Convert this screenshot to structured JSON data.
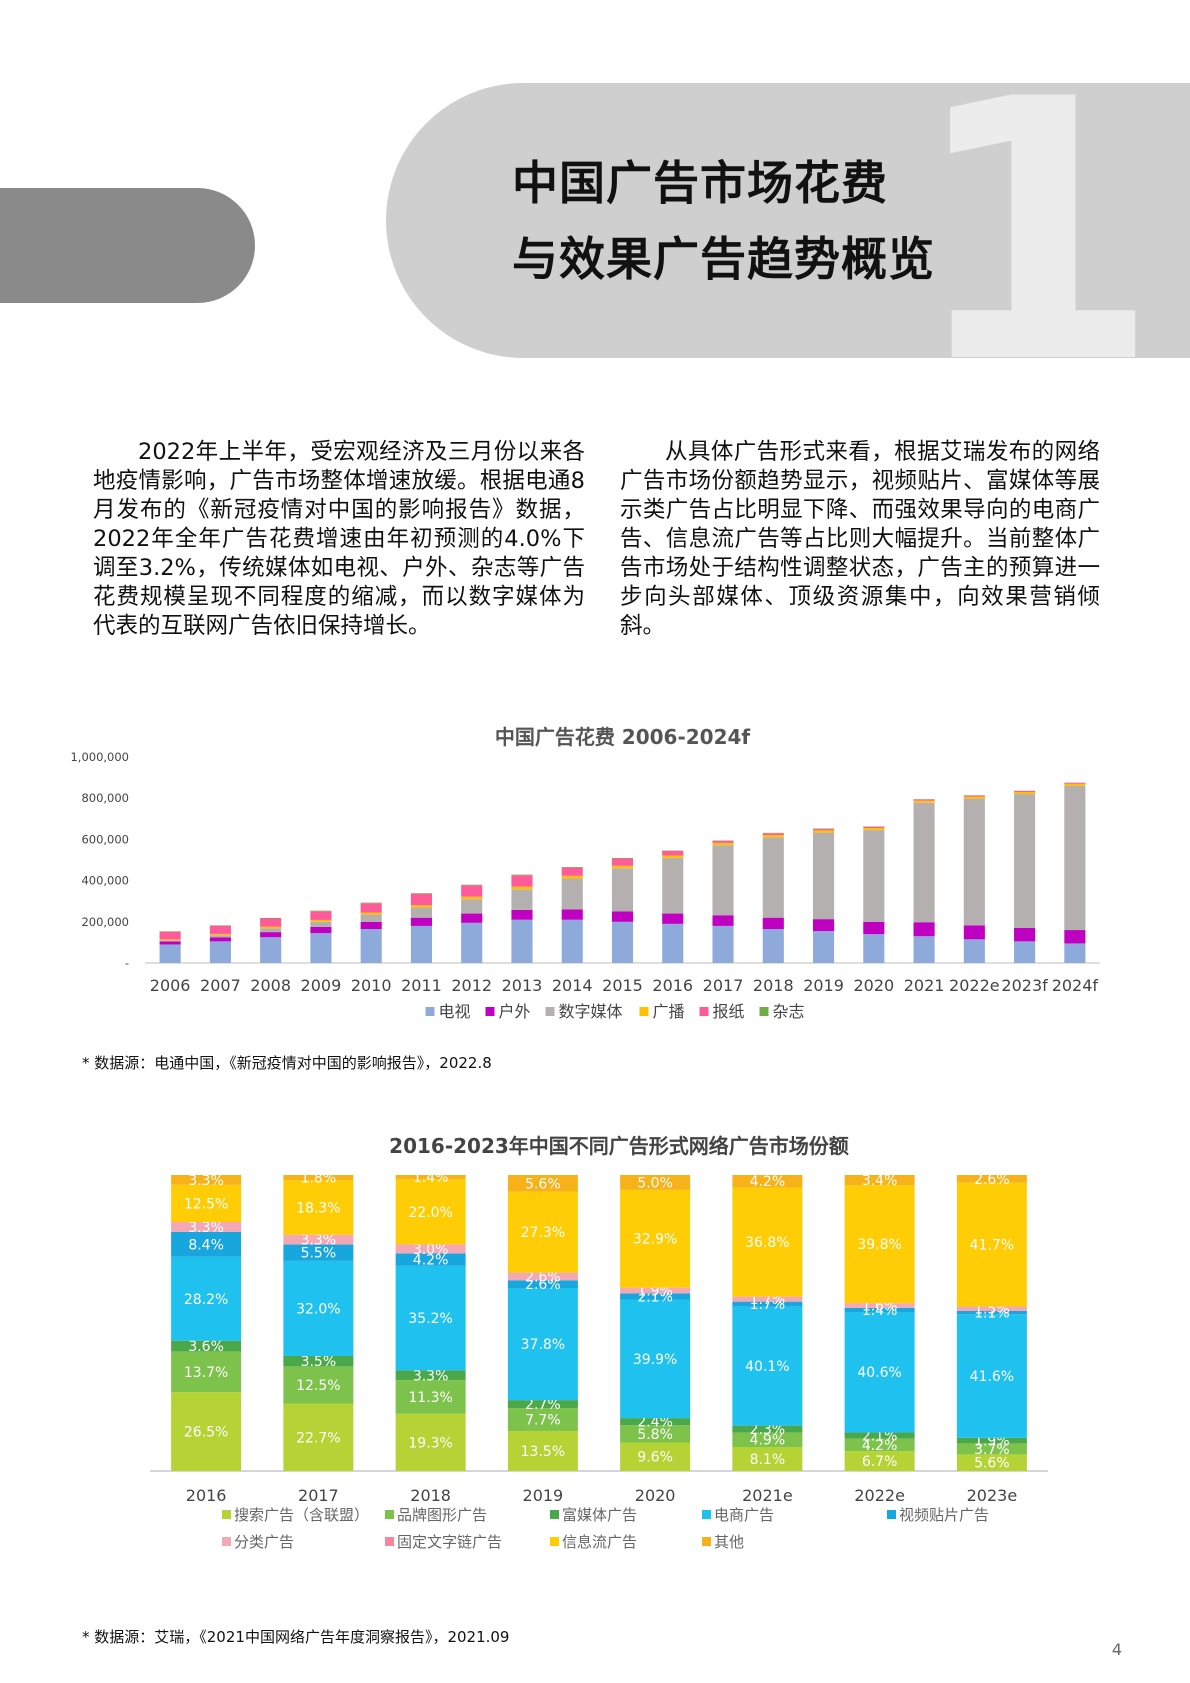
{
  "header": {
    "title_line1": "中国广告市场花费",
    "title_line2": "与效果广告趋势概览",
    "section_number": "1"
  },
  "paragraphs": {
    "p1": "2022年上半年，受宏观经济及三月份以来各地疫情影响，广告市场整体增速放缓。根据电通8月发布的《新冠疫情对中国的影响报告》数据，2022年全年广告花费增速由年初预测的4.0%下调至3.2%，传统媒体如电视、户外、杂志等广告花费规模呈现不同程度的缩减，而以数字媒体为代表的互联网广告依旧保持增长。",
    "p2": "从具体广告形式来看，根据艾瑞发布的网络广告市场份额趋势显示，视频贴片、富媒体等展示类广告占比明显下降、而强效果导向的电商广告、信息流广告等占比则大幅提升。当前整体广告市场处于结构性调整状态，广告主的预算进一步向头部媒体、顶级资源集中，向效果营销倾斜。"
  },
  "sources": {
    "chart1": "* 数据源：电通中国，《新冠疫情对中国的影响报告》，2022.8",
    "chart2": "* 数据源：艾瑞，《2021中国网络广告年度洞察报告》，2021.09"
  },
  "page_number": "4",
  "chart_data": [
    {
      "type": "bar",
      "stacked": true,
      "title": "中国广告花费 2006-2024f",
      "categories": [
        "2006",
        "2007",
        "2008",
        "2009",
        "2010",
        "2011",
        "2012",
        "2013",
        "2014",
        "2015",
        "2016",
        "2017",
        "2018",
        "2019",
        "2020",
        "2021",
        "2022e",
        "2023f",
        "2024f"
      ],
      "ylim": [
        0,
        1000000
      ],
      "yticks": [
        "-",
        "200,000",
        "400,000",
        "600,000",
        "800,000",
        "1,000,000"
      ],
      "legend_position": "bottom",
      "series": [
        {
          "name": "电视",
          "color": "#8eaadb",
          "values": [
            90000,
            105000,
            125000,
            145000,
            165000,
            180000,
            195000,
            210000,
            210000,
            200000,
            190000,
            180000,
            165000,
            155000,
            140000,
            130000,
            115000,
            105000,
            95000
          ]
        },
        {
          "name": "户外",
          "color": "#c000c0",
          "values": [
            15000,
            20000,
            25000,
            30000,
            35000,
            40000,
            45000,
            48000,
            50000,
            50000,
            50000,
            52000,
            55000,
            58000,
            60000,
            68000,
            68000,
            65000,
            65000
          ]
        },
        {
          "name": "数字媒体",
          "color": "#b4b0b0",
          "values": [
            5000,
            10000,
            18000,
            25000,
            35000,
            50000,
            70000,
            100000,
            150000,
            210000,
            270000,
            340000,
            390000,
            420000,
            445000,
            580000,
            615000,
            650000,
            700000
          ]
        },
        {
          "name": "广播",
          "color": "#ffc000",
          "values": [
            5000,
            6000,
            8000,
            9000,
            10000,
            11000,
            12000,
            13000,
            13000,
            12000,
            12000,
            11000,
            11000,
            11000,
            10000,
            10000,
            10000,
            10000,
            10000
          ]
        },
        {
          "name": "报纸",
          "color": "#ff5b9a",
          "values": [
            37000,
            40000,
            40000,
            42000,
            45000,
            55000,
            55000,
            55000,
            40000,
            35000,
            22000,
            10000,
            9000,
            7000,
            6000,
            6000,
            5000,
            5000,
            5000
          ]
        },
        {
          "name": "杂志",
          "color": "#70ad47",
          "values": [
            2000,
            2000,
            3000,
            3000,
            3000,
            3000,
            3000,
            3000,
            3000,
            3000,
            2000,
            2000,
            2000,
            2000,
            2000,
            1000,
            1000,
            1000,
            1000
          ]
        }
      ]
    },
    {
      "type": "bar",
      "stacked": true,
      "percent": true,
      "title": "2016-2023年中国不同广告形式网络广告市场份额",
      "categories": [
        "2016",
        "2017",
        "2018",
        "2019",
        "2020",
        "2021e",
        "2022e",
        "2023e"
      ],
      "legend_position": "bottom",
      "series": [
        {
          "name": "搜索广告（含联盟）",
          "color": "#b5d334",
          "values": [
            26.5,
            22.7,
            19.3,
            13.5,
            9.6,
            8.1,
            6.7,
            5.6
          ]
        },
        {
          "name": "品牌图形广告",
          "color": "#7cc24b",
          "values": [
            13.7,
            12.5,
            11.3,
            7.7,
            5.8,
            4.9,
            4.2,
            3.7
          ]
        },
        {
          "name": "富媒体广告",
          "color": "#4ba84a",
          "values": [
            3.6,
            3.5,
            3.3,
            2.7,
            2.4,
            2.3,
            2.1,
            1.9
          ]
        },
        {
          "name": "电商广告",
          "color": "#1fc2ee",
          "values": [
            28.2,
            32.0,
            35.2,
            37.8,
            39.9,
            40.1,
            40.6,
            41.6
          ]
        },
        {
          "name": "视频贴片广告",
          "color": "#18a6de",
          "values": [
            8.4,
            5.5,
            4.2,
            2.6,
            2.1,
            1.7,
            1.4,
            1.1
          ]
        },
        {
          "name": "分类广告",
          "color": "#f4a7b5",
          "values": [
            3.3,
            3.3,
            3.0,
            2.6,
            1.9,
            1.7,
            1.6,
            1.5
          ]
        },
        {
          "name": "固定文字链广告",
          "color": "#f4879b",
          "values": [
            0,
            0,
            0,
            0,
            0,
            0,
            0,
            0
          ]
        },
        {
          "name": "信息流广告",
          "color": "#ffcd05",
          "values": [
            12.5,
            18.3,
            22.0,
            27.3,
            32.9,
            36.8,
            39.8,
            41.7
          ]
        },
        {
          "name": "其他",
          "color": "#f7b21a",
          "values": [
            3.3,
            1.8,
            1.4,
            5.6,
            5.0,
            4.2,
            3.4,
            2.6
          ]
        }
      ],
      "labels": [
        [
          "26.5%",
          "13.7%",
          "3.6%",
          "28.2%",
          "8.4%",
          "3.3%",
          "",
          "12.5%",
          "3.3%"
        ],
        [
          "22.7%",
          "12.5%",
          "3.5%",
          "32.0%",
          "5.5%",
          "3.3%",
          "",
          "18.3%",
          "1.8%"
        ],
        [
          "19.3%",
          "11.3%",
          "3.3%",
          "35.2%",
          "4.2%",
          "3.0%",
          "",
          "22.0%",
          "1.4%"
        ],
        [
          "13.5%",
          "7.7%",
          "2.7%",
          "37.8%",
          "2.6%",
          "2.6%",
          "",
          "27.3%",
          "5.6%"
        ],
        [
          "9.6%",
          "5.8%",
          "2.4%",
          "39.9%",
          "2.1%",
          "1.9%",
          "",
          "32.9%",
          "5.0%"
        ],
        [
          "8.1%",
          "4.9%",
          "2.3%",
          "40.1%",
          "1.7%",
          "1.7%",
          "",
          "36.8%",
          "4.2%"
        ],
        [
          "6.7%",
          "4.2%",
          "2.1%",
          "40.6%",
          "1.4%",
          "1.6%",
          "",
          "39.8%",
          "3.4%"
        ],
        [
          "5.6%",
          "3.7%",
          "1.9%",
          "41.6%",
          "1.1%",
          "1.5%",
          "",
          "41.7%",
          "2.6%"
        ]
      ]
    }
  ]
}
